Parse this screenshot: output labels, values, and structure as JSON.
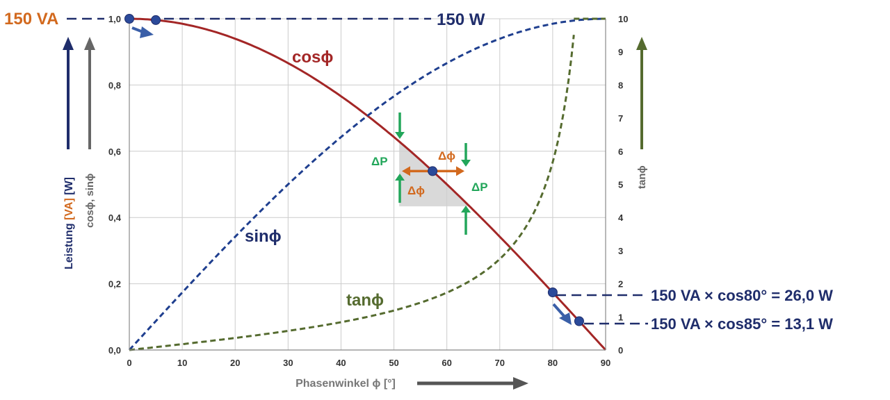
{
  "chart_data": {
    "type": "line",
    "x": [
      0,
      5,
      10,
      15,
      20,
      25,
      30,
      35,
      40,
      45,
      50,
      55,
      60,
      65,
      70,
      75,
      80,
      85,
      90
    ],
    "series": [
      {
        "name": "cosφ",
        "label": "cosϕ",
        "axis": "left",
        "style": "solid",
        "color": "#a32626",
        "values": [
          1.0,
          0.996,
          0.985,
          0.966,
          0.94,
          0.906,
          0.866,
          0.819,
          0.766,
          0.707,
          0.643,
          0.574,
          0.5,
          0.423,
          0.342,
          0.259,
          0.174,
          0.087,
          0.0
        ]
      },
      {
        "name": "sinφ",
        "label": "sinϕ",
        "axis": "left",
        "style": "dashed",
        "color": "#1f3f8f",
        "values": [
          0.0,
          0.087,
          0.174,
          0.259,
          0.342,
          0.423,
          0.5,
          0.574,
          0.643,
          0.707,
          0.766,
          0.819,
          0.866,
          0.906,
          0.94,
          0.966,
          0.985,
          0.996,
          1.0
        ]
      },
      {
        "name": "tanφ",
        "label": "tanϕ",
        "axis": "right",
        "style": "dashed",
        "color": "#556b2f",
        "x": [
          0,
          5,
          10,
          15,
          20,
          25,
          30,
          35,
          40,
          45,
          50,
          55,
          60,
          65,
          70,
          75,
          80,
          82,
          84
        ],
        "values": [
          0.0,
          0.087,
          0.176,
          0.268,
          0.364,
          0.466,
          0.577,
          0.7,
          0.839,
          1.0,
          1.192,
          1.428,
          1.732,
          2.145,
          2.747,
          3.732,
          5.671,
          7.115,
          9.514
        ]
      }
    ],
    "xlabel": "Phasenwinkel ϕ [°]",
    "xlim": [
      0,
      90
    ],
    "x_ticks": [
      "0",
      "10",
      "20",
      "30",
      "40",
      "50",
      "60",
      "70",
      "80",
      "90"
    ],
    "ylim_left": [
      0,
      1
    ],
    "y_ticks_left": [
      "0,0",
      "0,2",
      "0,4",
      "0,6",
      "0,8",
      "1,0"
    ],
    "ylabel_left_outer": {
      "part1": "Leistung ",
      "part2": "[VA]",
      "part3": " [W]"
    },
    "ylabel_left_inner": "cosϕ, sinϕ",
    "ylim_right": [
      0,
      10
    ],
    "y_ticks_right": [
      "0",
      "1",
      "2",
      "3",
      "4",
      "5",
      "6",
      "7",
      "8",
      "9",
      "10"
    ],
    "ylabel_right": "tanϕ",
    "grid": true,
    "markers": [
      {
        "x": 0,
        "y": 1.0
      },
      {
        "x": 5,
        "y": 0.996
      },
      {
        "x": 57.3,
        "y": 0.54
      },
      {
        "x": 80,
        "y": 0.174
      },
      {
        "x": 85,
        "y": 0.087
      }
    ],
    "annotations": {
      "va_label": "150 VA",
      "w_label": "150 W",
      "eq80": "150 VA × cos80° = 26,0 W",
      "eq85": "150 VA × cos85° = 13,1 W",
      "delta_p": "ΔP",
      "delta_phi": "Δϕ"
    },
    "colors": {
      "navy": "#1f2d6b",
      "orange": "#d2691e",
      "green": "#22a65a",
      "olive": "#556b2f",
      "gray": "#6e6e6e",
      "grid": "#cccccc"
    }
  }
}
